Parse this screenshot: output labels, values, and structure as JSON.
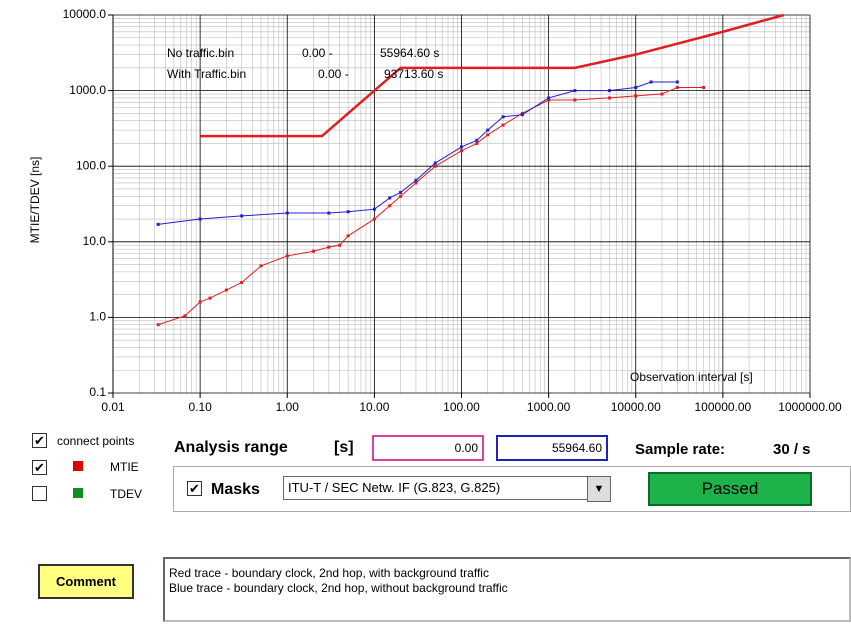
{
  "chart_data": {
    "type": "line",
    "ylabel": "MTIE/TDEV [ns]",
    "xlog": true,
    "ylog": true,
    "grid": true,
    "xlim": [
      0.01,
      1000000
    ],
    "ylim": [
      0.1,
      10000
    ],
    "xticks": [
      {
        "value": 0.01,
        "label": "0.01"
      },
      {
        "value": 0.1,
        "label": "0.10"
      },
      {
        "value": 1,
        "label": "1.00"
      },
      {
        "value": 10,
        "label": "10.00"
      },
      {
        "value": 100,
        "label": "100.00"
      },
      {
        "value": 1000,
        "label": "1000.00"
      },
      {
        "value": 10000,
        "label": "10000.00"
      },
      {
        "value": 100000,
        "label": "100000.00"
      },
      {
        "value": 1000000,
        "label": "1000000.00"
      }
    ],
    "yticks": [
      {
        "value": 0.1,
        "label": "0.1"
      },
      {
        "value": 1,
        "label": "1.0"
      },
      {
        "value": 10,
        "label": "10.0"
      },
      {
        "value": 100,
        "label": "100.0"
      },
      {
        "value": 1000,
        "label": "1000.0"
      },
      {
        "value": 10000,
        "label": "10000.0"
      }
    ],
    "annotations": [
      "No traffic.bin",
      "0.00 -",
      "55964.60 s",
      "With Traffic.bin",
      "0.00 -",
      "93713.60 s",
      "Observation interval  [s]"
    ],
    "series": [
      {
        "color": "#e02020",
        "width": 2.5,
        "markers": false,
        "x": [
          0.1,
          2.5,
          20,
          2000,
          10000,
          100000,
          500000
        ],
        "values": [
          250,
          250,
          2000,
          2000,
          3000,
          6000,
          10000
        ]
      },
      {
        "name": "MTIE",
        "color": "#e02020",
        "width": 1,
        "markers": true,
        "x": [
          0.033,
          0.067,
          0.1,
          0.13,
          0.2,
          0.3,
          0.5,
          1,
          2,
          3,
          4,
          5,
          10,
          15,
          20,
          30,
          50,
          100,
          150,
          200,
          300,
          500,
          1000,
          2000,
          5000,
          10000,
          20000,
          30000,
          60000
        ],
        "values": [
          0.8,
          1.05,
          1.6,
          1.8,
          2.3,
          2.9,
          4.8,
          6.5,
          7.5,
          8.5,
          9,
          12,
          20,
          30,
          40,
          60,
          100,
          160,
          200,
          260,
          350,
          500,
          750,
          750,
          800,
          850,
          900,
          1100,
          1100
        ]
      },
      {
        "name": "TDEV",
        "color": "#2020d0",
        "width": 1,
        "markers": true,
        "x": [
          0.033,
          0.1,
          0.3,
          1,
          3,
          5,
          10,
          15,
          20,
          30,
          50,
          100,
          150,
          200,
          300,
          500,
          1000,
          2000,
          5000,
          10000,
          15000,
          30000
        ],
        "values": [
          17,
          20,
          22,
          24,
          24,
          25,
          27,
          38,
          45,
          65,
          110,
          180,
          220,
          300,
          450,
          480,
          800,
          1000,
          1000,
          1100,
          1300,
          1300
        ]
      }
    ]
  },
  "ui": {
    "connect_points": "connect points",
    "legend_mtie": "MTIE",
    "legend_tdev": "TDEV",
    "analysis_range": "Analysis range",
    "unit": "[s]",
    "range_from": "0.00",
    "range_to": "55964.60",
    "sample_rate_label": "Sample rate:",
    "sample_rate": "30 / s",
    "masks": "Masks",
    "mask_select": "ITU-T / SEC Netw. IF (G.823, G.825)",
    "status": "Passed",
    "comment_button": "Comment",
    "comment_lines": [
      "Red trace  - boundary clock, 2nd hop, with background traffic",
      "Blue trace  - boundary clock, 2nd hop, without background traffic"
    ]
  }
}
